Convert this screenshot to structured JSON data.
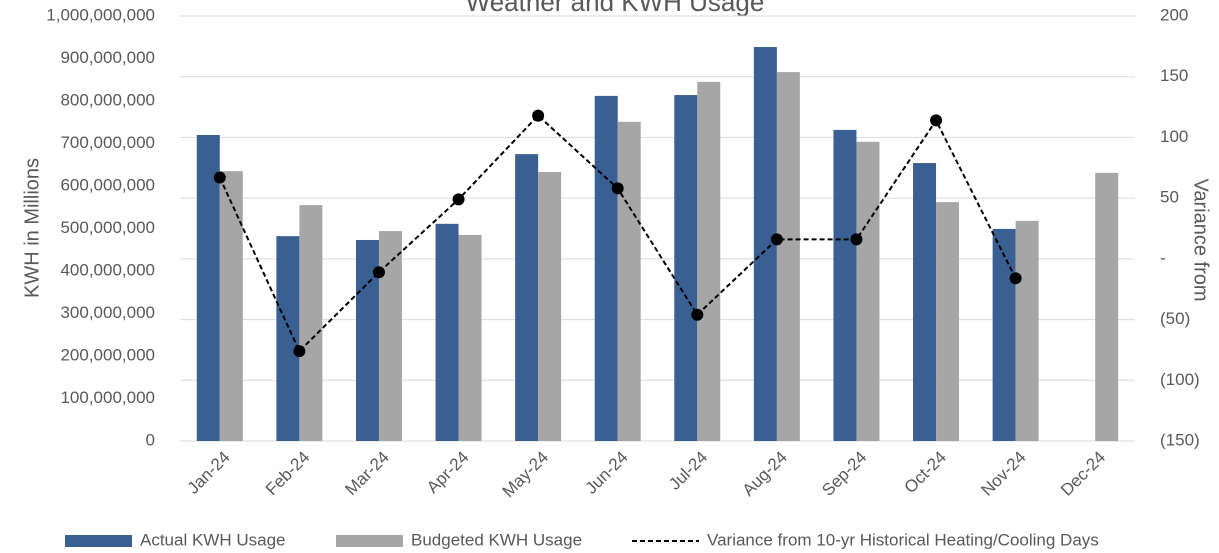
{
  "chart_data": {
    "type": "bar_line",
    "title": "Weather and KWH Usage",
    "y_label": "KWH in Millions",
    "y2_label": "Variance from",
    "categories": [
      "Jan-24",
      "Feb-24",
      "Mar-24",
      "Apr-24",
      "May-24",
      "Jun-24",
      "Jul-24",
      "Aug-24",
      "Sep-24",
      "Oct-24",
      "Nov-24",
      "Dec-24"
    ],
    "series": [
      {
        "name": "Actual KWH Usage",
        "type": "bar",
        "axis": "y",
        "color": "#3a5f93",
        "values": [
          720000000,
          482000000,
          473000000,
          511000000,
          675000000,
          812000000,
          814000000,
          927000000,
          732000000,
          654000000,
          499000000,
          null
        ]
      },
      {
        "name": "Budgeted KWH Usage",
        "type": "bar",
        "axis": "y",
        "color": "#a6a6a6",
        "values": [
          635000000,
          555000000,
          494000000,
          485000000,
          633000000,
          751000000,
          845000000,
          868000000,
          704000000,
          562000000,
          518000000,
          631000000
        ]
      },
      {
        "name": "Variance from 10-yr Historical Heating/Cooling Days",
        "type": "line",
        "axis": "y2",
        "color": "#000000",
        "values": [
          67,
          -76,
          -11,
          49,
          118,
          58,
          -46,
          16,
          16,
          114,
          -16,
          null
        ]
      }
    ],
    "ylim": [
      0,
      1000000000
    ],
    "yticks": [
      0,
      {
        "value": 100000000,
        "label": "100,000,000"
      },
      {
        "value": 200000000,
        "label": "200,000,000"
      },
      {
        "value": 300000000,
        "label": "300,000,000"
      },
      {
        "value": 400000000,
        "label": "400,000,000"
      },
      {
        "value": 500000000,
        "label": "500,000,000"
      },
      {
        "value": 600000000,
        "label": "600,000,000"
      },
      {
        "value": 700000000,
        "label": "700,000,000"
      },
      {
        "value": 800000000,
        "label": "800,000,000"
      },
      {
        "value": 900000000,
        "label": "900,000,000"
      },
      {
        "value": 1000000000,
        "label": "1,000,000,000"
      }
    ],
    "y2lim": [
      -150,
      200
    ],
    "y2ticks": [
      {
        "value": -150,
        "label": "(150)"
      },
      {
        "value": -100,
        "label": "(100)"
      },
      {
        "value": -50,
        "label": "(50)"
      },
      {
        "value": 0,
        "label": "-"
      },
      50,
      100,
      150,
      200
    ],
    "grid": true,
    "legend": "bottom"
  }
}
